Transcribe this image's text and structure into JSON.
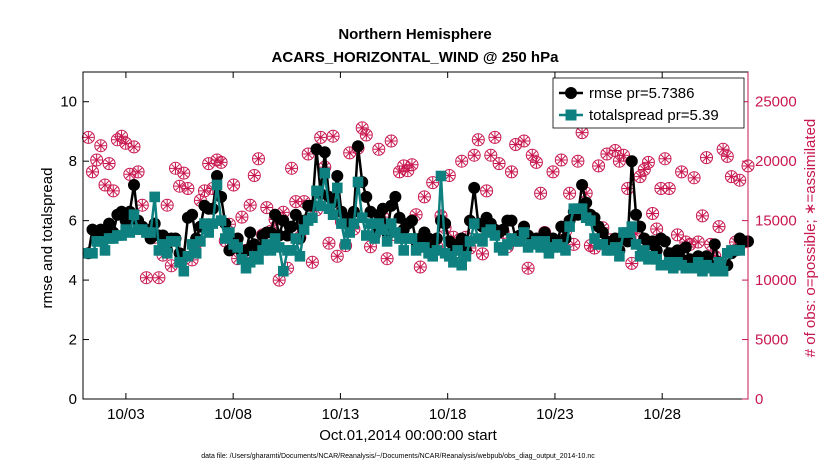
{
  "chart_data": {
    "type": "line",
    "title": "Northern Hemisphere",
    "subtitle": "ACARS_HORIZONTAL_WIND @ 250 hPa",
    "xlabel": "Oct.01,2014 00:00:00 start",
    "ylabel": "rmse and totalspread",
    "y2label": "# of obs: o=possible; ∗=assimilated",
    "footer": "data file: /Users/gharamti/Documents/NCAR/Reanalysis/~/Documents/NCAR/Reanalysis/webpub/obs_diag_output_2014-10.nc",
    "xlim": [
      1,
      32
    ],
    "ylim": [
      0,
      11
    ],
    "y2lim": [
      0,
      27500
    ],
    "x_ticks": [
      3,
      8,
      13,
      18,
      23,
      28
    ],
    "x_tick_labels": [
      "10/03",
      "10/08",
      "10/13",
      "10/18",
      "10/23",
      "10/28"
    ],
    "y_ticks": [
      0,
      2,
      4,
      6,
      8,
      10
    ],
    "y_tick_labels": [
      "0",
      "2",
      "4",
      "6",
      "8",
      "10"
    ],
    "y2_ticks": [
      0,
      5000,
      10000,
      15000,
      20000,
      25000
    ],
    "y2_tick_labels": [
      "0",
      "5000",
      "10000",
      "15000",
      "20000",
      "25000"
    ],
    "legend_position": "top-right",
    "colors": {
      "rmse": "#000000",
      "totalspread": "#0f8080",
      "obs": "#c8174f"
    },
    "series": [
      {
        "name": "rmse",
        "legend": "rmse pr=5.7386",
        "values": [
          4.9,
          5.7,
          5.6,
          5.7,
          5.5,
          5.9,
          5.6,
          6.2,
          6.3,
          6.0,
          6.3,
          7.2,
          6.0,
          5.8,
          5.7,
          5.4,
          5.9,
          5.5,
          5.5,
          5.0,
          5.4,
          5.4,
          4.9,
          4.8,
          6.1,
          6.2,
          5.4,
          5.8,
          6.5,
          6.4,
          6.4,
          7.5,
          6.8,
          5.9,
          5.0,
          5.1,
          5.4,
          4.9,
          5.0,
          5.6,
          5.2,
          5.0,
          5.5,
          5.6,
          5.6,
          6.2,
          5.5,
          6.0,
          5.5,
          5.8,
          6.2,
          5.4,
          6.0,
          6.5,
          6.5,
          8.4,
          6.9,
          8.3,
          6.8,
          6.6,
          7.5,
          6.3,
          6.1,
          5.8,
          6.3,
          8.5,
          7.3,
          6.8,
          6.3,
          5.5,
          6.2,
          6.4,
          5.6,
          6.5,
          6.8,
          6.1,
          5.7,
          5.9,
          6.0,
          5.3,
          5.4,
          5.6,
          5.4,
          5.1,
          5.4,
          6.0,
          5.9,
          5.3,
          5.1,
          5.2,
          5.4,
          5.0,
          6.0,
          7.1,
          5.9,
          5.8,
          6.1,
          5.9,
          5.7,
          5.6,
          5.7,
          6.0,
          6.0,
          5.4,
          5.5,
          5.8,
          5.5,
          5.3,
          5.4,
          5.2,
          5.6,
          5.0,
          5.4,
          5.3,
          5.8,
          5.4,
          6.0,
          6.3,
          6.2,
          7.2,
          6.6,
          6.2,
          6.1,
          5.8,
          5.6,
          5.3,
          5.2,
          5.4,
          5.0,
          5.5,
          5.3,
          8.0,
          6.2,
          5.8,
          5.4,
          5.2,
          5.3,
          5.0,
          5.4,
          5.3,
          4.9,
          4.9,
          5.0,
          4.7,
          5.1,
          4.7,
          4.6,
          4.8,
          4.6,
          4.8,
          4.5,
          5.2,
          4.6,
          4.4,
          4.5,
          4.9,
          5.0,
          5.4,
          5.3,
          5.3
        ]
      },
      {
        "name": "totalspread",
        "legend": "totalspread pr=5.39",
        "values": [
          4.9,
          4.9,
          5.3,
          5.3,
          5.0,
          5.4,
          5.4,
          5.5,
          5.5,
          5.7,
          5.6,
          6.2,
          5.7,
          5.7,
          5.6,
          5.6,
          6.8,
          5.0,
          5.2,
          4.9,
          5.3,
          5.3,
          4.6,
          4.3,
          4.8,
          5.2,
          4.9,
          5.3,
          5.9,
          5.6,
          5.9,
          7.2,
          6.0,
          5.4,
          5.6,
          5.2,
          5.1,
          4.7,
          4.4,
          4.6,
          4.8,
          4.7,
          5.0,
          5.2,
          5.0,
          5.4,
          5.1,
          4.3,
          5.0,
          5.0,
          5.4,
          4.8,
          5.7,
          6.0,
          6.1,
          7.0,
          6.5,
          7.6,
          6.4,
          6.2,
          7.1,
          5.9,
          5.2,
          5.6,
          5.9,
          7.3,
          6.1,
          5.5,
          5.9,
          5.4,
          5.9,
          5.7,
          5.3,
          5.9,
          5.6,
          5.4,
          5.0,
          5.4,
          5.4,
          5.0,
          5.1,
          5.1,
          4.9,
          4.8,
          5.0,
          7.5,
          4.9,
          4.8,
          4.6,
          5.0,
          4.5,
          4.8,
          5.3,
          5.9,
          5.4,
          5.3,
          5.6,
          5.7,
          5.5,
          5.1,
          5.0,
          5.2,
          5.4,
          5.3,
          5.3,
          5.6,
          5.1,
          5.2,
          5.3,
          5.1,
          5.3,
          4.9,
          5.1,
          5.2,
          5.1,
          5.0,
          5.8,
          6.4,
          6.4,
          6.4,
          6.1,
          6.0,
          5.4,
          5.2,
          5.2,
          5.0,
          5.0,
          5.1,
          4.8,
          5.6,
          5.6,
          5.8,
          5.2,
          4.8,
          5.0,
          4.7,
          4.8,
          4.7,
          4.5,
          4.5,
          4.6,
          4.4,
          4.6,
          4.5,
          4.4,
          4.4,
          4.4,
          4.6,
          4.3,
          4.5,
          4.4,
          4.3,
          4.6,
          4.3,
          4.9,
          5.0,
          5.0,
          5.0
        ]
      }
    ],
    "obs_possible": [
      22000,
      19100,
      20100,
      21300,
      18000,
      19800,
      17500,
      21800,
      22100,
      21500,
      18900,
      21200,
      19100,
      16300,
      10200,
      14000,
      13600,
      10200,
      12100,
      16300,
      11200,
      19400,
      17900,
      19000,
      17700,
      11700,
      13100,
      16700,
      17500,
      19800,
      17700,
      20100,
      19900,
      13300,
      14700,
      18000,
      11800,
      15300,
      12500,
      16300,
      18800,
      20200,
      13800,
      16100,
      14100,
      15100,
      10000,
      15700,
      11000,
      19400,
      16600,
      13600,
      16600,
      20600,
      11500,
      15900,
      22000,
      19500,
      13100,
      22100,
      12000,
      14900,
      12900,
      20700,
      14300,
      21100,
      22800,
      22200,
      12800,
      14100,
      21000,
      15300,
      11800,
      21700,
      13800,
      19100,
      19600,
      19200,
      19700,
      15500,
      11100,
      17000,
      13000,
      18200,
      12800,
      15400,
      14400,
      18800,
      13600,
      12900,
      20000,
      13600,
      12700,
      20500,
      21800,
      12200,
      17500,
      20500,
      22000,
      19800,
      14000,
      12800,
      19100,
      21400,
      13700,
      21700,
      11000,
      20500,
      19900,
      17300,
      14000,
      13400,
      19100,
      13100,
      20100,
      14100,
      17300,
      13000,
      20000,
      22400,
      17300,
      12900,
      12700,
      19600,
      14400,
      20600,
      13400,
      20900,
      20000,
      20500,
      17700,
      11400,
      13900,
      18700,
      19300,
      19900,
      15600,
      14300,
      17700,
      20200,
      17700,
      12200,
      13800,
      19100,
      13200,
      13000,
      18600,
      13200,
      15400,
      20300,
      13000,
      12000,
      14500,
      21000,
      20400,
      18700,
      13200,
      18400,
      13200,
      19600
    ]
  }
}
